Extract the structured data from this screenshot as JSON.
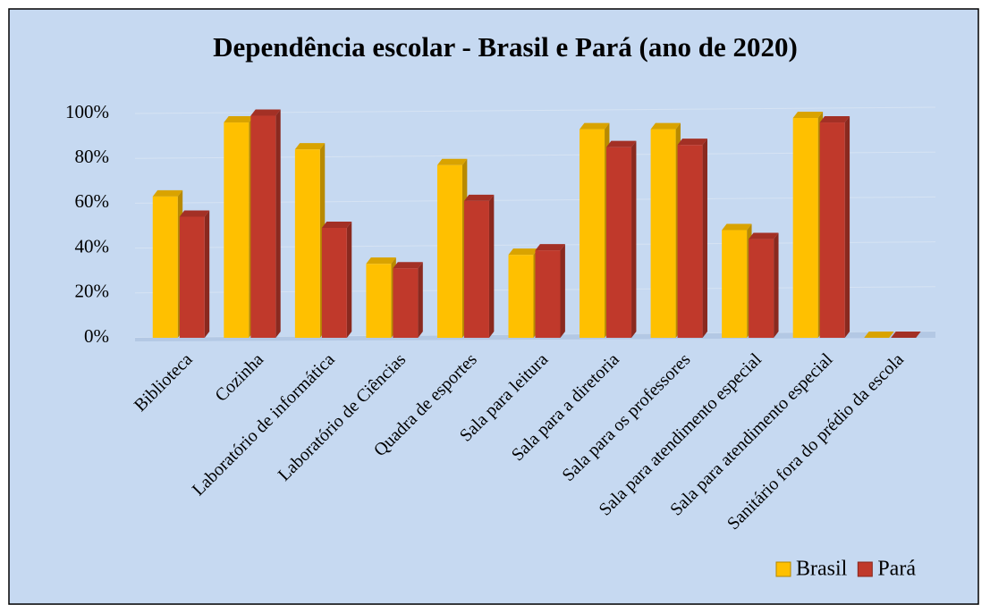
{
  "chart_data": {
    "type": "bar3d",
    "title": "Dependência escolar - Brasil e Pará (ano de 2020)",
    "categories": [
      "Biblioteca",
      "Cozinha",
      "Laboratório de informática",
      "Laboratório de Ciências",
      "Quadra de esportes",
      "Sala para leitura",
      "Sala para a diretoria",
      "Sala para os professores",
      "Sala para atendimento especial",
      "Sala para atendimento especial",
      "Sanitário fora do prédio da escola"
    ],
    "series": [
      {
        "name": "Brasil",
        "color": "#ffc000",
        "values": [
          63,
          96,
          84,
          33,
          77,
          37,
          93,
          93,
          48,
          98,
          0
        ]
      },
      {
        "name": "Pará",
        "color": "#c0392b",
        "values": [
          54,
          99,
          49,
          31,
          61,
          39,
          85,
          86,
          44,
          96,
          0
        ]
      }
    ],
    "ylim": [
      0,
      100
    ],
    "yticks": [
      {
        "value": 0,
        "label": "0%"
      },
      {
        "value": 20,
        "label": "20%"
      },
      {
        "value": 40,
        "label": "40%"
      },
      {
        "value": 60,
        "label": "60%"
      },
      {
        "value": 80,
        "label": "80%"
      },
      {
        "value": 100,
        "label": "100%"
      }
    ],
    "grid": true,
    "legend": "lower right"
  }
}
